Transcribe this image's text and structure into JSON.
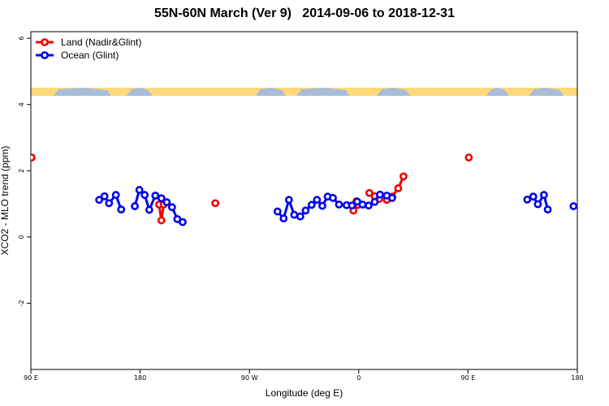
{
  "chart_data": {
    "type": "line",
    "title": "55N-60N March (Ver 9)   2014-09-06 to 2018-12-31",
    "xlabel": "Longitude (deg E)",
    "ylabel": "XCO2 - MLO trend (ppm)",
    "xlim": [
      90,
      450
    ],
    "ylim": [
      -4,
      6.2
    ],
    "x_ticks": [
      {
        "value": 90,
        "label": "90 E"
      },
      {
        "value": 162,
        "label": "180"
      },
      {
        "value": 234,
        "label": "90 W"
      },
      {
        "value": 306,
        "label": "0"
      },
      {
        "value": 378,
        "label": "90 E"
      },
      {
        "value": 450,
        "label": "180"
      }
    ],
    "y_ticks": [
      -2,
      0,
      2,
      4,
      6
    ],
    "grid": false,
    "legend_position": "top-left",
    "series": [
      {
        "name": "Land (Nadir&Glint)",
        "color": "#ee0000",
        "segments": [
          [
            [
              90.5,
              2.4
            ]
          ],
          [
            [
              174.5,
              0.98
            ],
            [
              176,
              0.5
            ],
            [
              177.5,
              0.98
            ]
          ],
          [
            [
              211.5,
              1.02
            ]
          ],
          [
            [
              302.5,
              0.8
            ],
            [
              304.5,
              1.08
            ],
            [
              305.5,
              0.97
            ]
          ],
          [
            [
              313,
              1.33
            ],
            [
              316.5,
              1.23
            ],
            [
              319.5,
              1.15
            ],
            [
              324.5,
              1.12
            ],
            [
              328,
              1.22
            ],
            [
              332,
              1.47
            ],
            [
              335.5,
              1.83
            ]
          ],
          [
            [
              378.5,
              2.4
            ]
          ]
        ]
      },
      {
        "name": "Ocean (Glint)",
        "color": "#0000ee",
        "segments": [
          [
            [
              135,
              1.12
            ],
            [
              138.5,
              1.23
            ],
            [
              141.5,
              1.02
            ],
            [
              146,
              1.27
            ],
            [
              149.5,
              0.83
            ]
          ],
          [
            [
              158.5,
              0.93
            ],
            [
              161.5,
              1.42
            ],
            [
              165,
              1.27
            ],
            [
              168,
              0.82
            ],
            [
              172,
              1.25
            ],
            [
              176,
              1.17
            ],
            [
              179.5,
              1.05
            ],
            [
              183,
              0.9
            ],
            [
              186.5,
              0.54
            ],
            [
              190,
              0.45
            ]
          ],
          [
            [
              252.5,
              0.77
            ],
            [
              256.5,
              0.56
            ],
            [
              260,
              1.12
            ],
            [
              263.5,
              0.67
            ],
            [
              267.5,
              0.62
            ],
            [
              271,
              0.8
            ],
            [
              275,
              0.97
            ],
            [
              278.5,
              1.12
            ],
            [
              282,
              0.94
            ],
            [
              285.5,
              1.22
            ],
            [
              289,
              1.18
            ],
            [
              293,
              0.98
            ],
            [
              298,
              0.96
            ],
            [
              301.5,
              0.95
            ],
            [
              305,
              1.07
            ],
            [
              308.5,
              0.98
            ],
            [
              312.5,
              0.95
            ],
            [
              316.5,
              1.06
            ],
            [
              320,
              1.28
            ],
            [
              324.5,
              1.25
            ],
            [
              328,
              1.18
            ]
          ],
          [
            [
              417,
              1.13
            ],
            [
              421,
              1.22
            ],
            [
              424,
              0.99
            ],
            [
              428,
              1.27
            ],
            [
              430.5,
              0.83
            ]
          ],
          [
            [
              447.5,
              0.93
            ]
          ]
        ]
      }
    ]
  }
}
